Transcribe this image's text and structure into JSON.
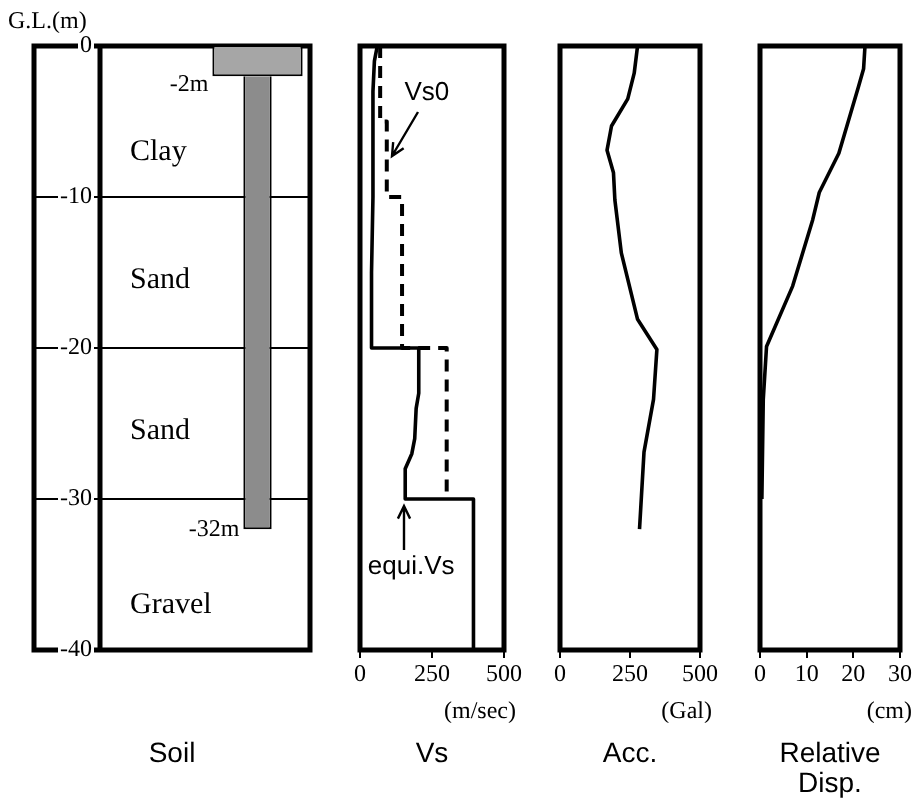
{
  "chart_data": [
    {
      "type": "bar",
      "stacked": true,
      "title": "Soil",
      "ylabel": "G.L.(m)",
      "categories": [
        null,
        null
      ],
      "ylim": [
        -40,
        0
      ],
      "yticks": [
        0,
        -10,
        -20,
        -30,
        -40
      ],
      "grid": "y",
      "series": [
        {
          "color": "#a6a6a6",
          "values": [
            null,
            -2
          ]
        },
        {
          "color": "#8c8c8c",
          "values": [
            null,
            -30
          ]
        }
      ],
      "annotations": [
        "-2m",
        "-32m",
        "Clay",
        "Sand",
        "Sand",
        "Gravel"
      ]
    },
    {
      "type": "line",
      "title": "Vs",
      "xlabel": "(m/sec)",
      "xlim": [
        0,
        500
      ],
      "xticks": [
        0,
        250,
        500
      ],
      "ylim": [
        -40,
        0
      ],
      "yticks": [
        0,
        -10,
        -20,
        -30,
        -40
      ],
      "tick_labels": "x",
      "marker": "none",
      "series": [
        {
          "name": "Vs0",
          "color": "#000000",
          "line_style": "dashed",
          "x": [
            70,
            70,
            93,
            93,
            146,
            146,
            301,
            301
          ],
          "values": [
            0,
            -5,
            -5,
            -10,
            -10,
            -20,
            -20,
            -30
          ]
        },
        {
          "name": "equi.Vs",
          "color": "#000000",
          "line_style": "solid",
          "x": [
            60,
            50,
            45,
            45,
            40,
            40,
            204,
            204,
            195,
            190,
            180,
            157,
            157,
            394,
            394
          ],
          "values": [
            0,
            -1,
            -3,
            -10,
            -15,
            -20,
            -20,
            -23,
            -24,
            -26,
            -27,
            -28,
            -30,
            -30,
            -40
          ]
        }
      ]
    },
    {
      "type": "line",
      "title": "Acc.",
      "xlabel": "(Gal)",
      "xlim": [
        0,
        500
      ],
      "xticks": [
        0,
        250,
        500
      ],
      "ylim": [
        -40,
        0
      ],
      "yticks": [
        0,
        -10,
        -20,
        -30,
        -40
      ],
      "tick_labels": "x",
      "marker": "none",
      "series": [
        {
          "color": "#000000",
          "line_style": "solid",
          "x": [
            277,
            265,
            242,
            184,
            168,
            191,
            196,
            219,
            277,
            346,
            334,
            300,
            284
          ],
          "values": [
            0,
            -1.8,
            -3.5,
            -5.3,
            -6.9,
            -8.4,
            -10.2,
            -13.7,
            -18.1,
            -20.1,
            -23.4,
            -26.9,
            -32
          ]
        }
      ]
    },
    {
      "type": "line",
      "title": "Relative Disp.",
      "xlabel": "(cm)",
      "xlim": [
        0,
        30
      ],
      "xticks": [
        0,
        10,
        20,
        30
      ],
      "ylim": [
        -40,
        0
      ],
      "yticks": [
        0,
        -10,
        -20,
        -30,
        -40
      ],
      "tick_labels": "x",
      "marker": "none",
      "series": [
        {
          "color": "#000000",
          "line_style": "solid",
          "x": [
            22.5,
            22.2,
            21.1,
            19,
            16.9,
            12.7,
            11.3,
            7,
            1.4,
            0.7,
            0.4
          ],
          "values": [
            0,
            -1.5,
            -2.7,
            -4.9,
            -7.1,
            -9.7,
            -11.5,
            -15.9,
            -19.9,
            -23.4,
            -30
          ]
        }
      ]
    }
  ]
}
